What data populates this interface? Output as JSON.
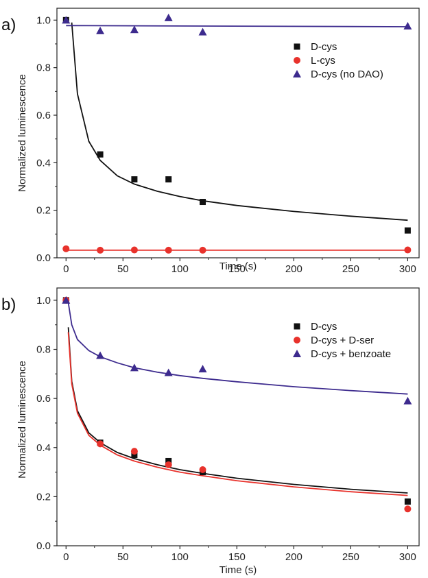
{
  "chart_data": [
    {
      "type": "scatter",
      "panel_label": "a)",
      "xlabel": "Time (s)",
      "ylabel": "Normalized luminescence",
      "xlim": [
        -8,
        310
      ],
      "ylim": [
        0,
        1.05
      ],
      "xticks": [
        0,
        50,
        100,
        150,
        200,
        250,
        300
      ],
      "yticks": [
        0.0,
        0.2,
        0.4,
        0.6,
        0.8,
        1.0
      ],
      "legend_position": "top-right",
      "series": [
        {
          "name": "D-cys",
          "marker": "square",
          "color": "#111111",
          "points": [
            [
              0,
              1.0
            ],
            [
              30,
              0.435
            ],
            [
              60,
              0.33
            ],
            [
              90,
              0.33
            ],
            [
              120,
              0.235
            ],
            [
              300,
              0.115
            ]
          ],
          "fit": {
            "x": [
              5,
              10,
              20,
              30,
              45,
              60,
              80,
              100,
              120,
              150,
              200,
              250,
              300
            ],
            "y": [
              0.99,
              0.69,
              0.49,
              0.41,
              0.345,
              0.31,
              0.28,
              0.258,
              0.24,
              0.22,
              0.195,
              0.175,
              0.158
            ]
          }
        },
        {
          "name": "L-cys",
          "marker": "circle",
          "color": "#e8322c",
          "points": [
            [
              0,
              0.038
            ],
            [
              30,
              0.032
            ],
            [
              60,
              0.033
            ],
            [
              90,
              0.032
            ],
            [
              120,
              0.032
            ],
            [
              300,
              0.033
            ]
          ],
          "fit": {
            "x": [
              0,
              300
            ],
            "y": [
              0.032,
              0.032
            ]
          }
        },
        {
          "name": "D-cys (no DAO)",
          "marker": "triangle",
          "color": "#3d2b8e",
          "points": [
            [
              0,
              1.0
            ],
            [
              30,
              0.955
            ],
            [
              60,
              0.96
            ],
            [
              90,
              1.01
            ],
            [
              120,
              0.95
            ],
            [
              300,
              0.975
            ]
          ],
          "fit": {
            "x": [
              0,
              300
            ],
            "y": [
              0.977,
              0.972
            ]
          }
        }
      ]
    },
    {
      "type": "scatter",
      "panel_label": "b)",
      "xlabel": "Time (s)",
      "ylabel": "Normalized luminescence",
      "xlim": [
        -8,
        310
      ],
      "ylim": [
        0,
        1.05
      ],
      "xticks": [
        0,
        50,
        100,
        150,
        200,
        250,
        300
      ],
      "yticks": [
        0.0,
        0.2,
        0.4,
        0.6,
        0.8,
        1.0
      ],
      "legend_position": "top-right",
      "series": [
        {
          "name": "D-cys",
          "marker": "square",
          "color": "#111111",
          "points": [
            [
              0,
              1.0
            ],
            [
              30,
              0.42
            ],
            [
              60,
              0.37
            ],
            [
              90,
              0.345
            ],
            [
              120,
              0.3
            ],
            [
              300,
              0.18
            ]
          ],
          "fit": {
            "x": [
              2,
              5,
              10,
              20,
              30,
              45,
              60,
              80,
              100,
              120,
              150,
              200,
              250,
              300
            ],
            "y": [
              0.89,
              0.67,
              0.55,
              0.46,
              0.42,
              0.38,
              0.355,
              0.33,
              0.31,
              0.295,
              0.275,
              0.25,
              0.23,
              0.215
            ]
          }
        },
        {
          "name": "D-cys + D-ser",
          "marker": "circle",
          "color": "#e8322c",
          "points": [
            [
              0,
              1.0
            ],
            [
              30,
              0.415
            ],
            [
              60,
              0.385
            ],
            [
              90,
              0.33
            ],
            [
              120,
              0.31
            ],
            [
              300,
              0.15
            ]
          ],
          "fit": {
            "x": [
              2,
              5,
              10,
              20,
              30,
              45,
              60,
              80,
              100,
              120,
              150,
              200,
              250,
              300
            ],
            "y": [
              0.87,
              0.66,
              0.54,
              0.45,
              0.41,
              0.37,
              0.345,
              0.32,
              0.3,
              0.285,
              0.265,
              0.24,
              0.22,
              0.205
            ]
          }
        },
        {
          "name": "D-cys + benzoate",
          "marker": "triangle",
          "color": "#3d2b8e",
          "points": [
            [
              0,
              1.0
            ],
            [
              30,
              0.775
            ],
            [
              60,
              0.725
            ],
            [
              90,
              0.705
            ],
            [
              120,
              0.72
            ],
            [
              300,
              0.59
            ]
          ],
          "fit": {
            "x": [
              2,
              5,
              10,
              20,
              30,
              45,
              60,
              80,
              100,
              120,
              150,
              200,
              250,
              300
            ],
            "y": [
              0.99,
              0.9,
              0.84,
              0.795,
              0.77,
              0.745,
              0.725,
              0.707,
              0.693,
              0.682,
              0.668,
              0.648,
              0.632,
              0.618
            ]
          }
        }
      ]
    }
  ]
}
